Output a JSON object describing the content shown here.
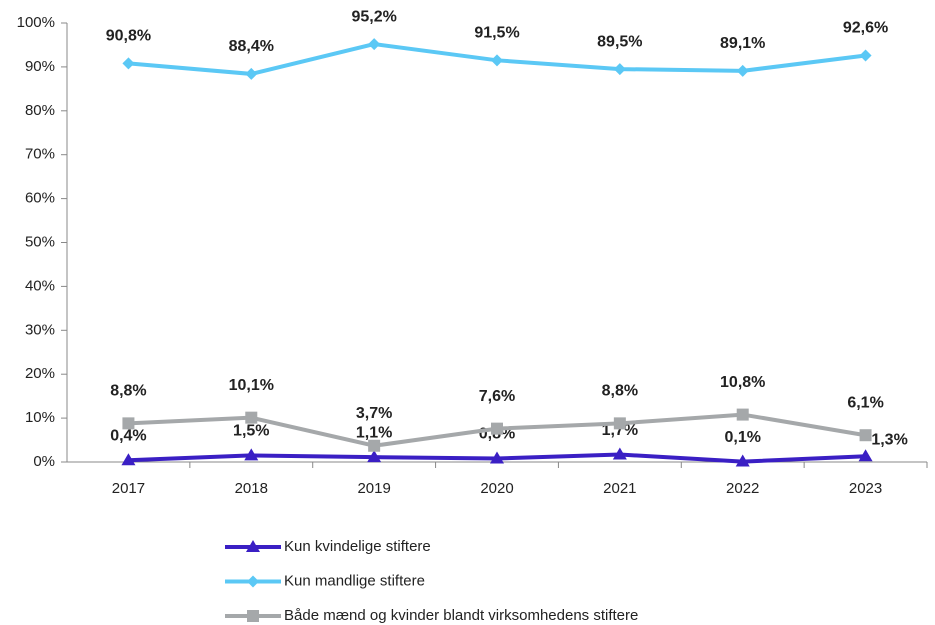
{
  "chart_data": {
    "type": "line",
    "categories": [
      "2017",
      "2018",
      "2019",
      "2020",
      "2021",
      "2022",
      "2023"
    ],
    "ylim": [
      0,
      100
    ],
    "yticks": [
      {
        "value": 0,
        "label": "0%"
      },
      {
        "value": 10,
        "label": "10%"
      },
      {
        "value": 20,
        "label": "20%"
      },
      {
        "value": 30,
        "label": "30%"
      },
      {
        "value": 40,
        "label": "40%"
      },
      {
        "value": 50,
        "label": "50%"
      },
      {
        "value": 60,
        "label": "60%"
      },
      {
        "value": 70,
        "label": "70%"
      },
      {
        "value": 80,
        "label": "80%"
      },
      {
        "value": 90,
        "label": "90%"
      },
      {
        "value": 100,
        "label": "100%"
      }
    ],
    "series": [
      {
        "name": "Kun kvindelige stiftere",
        "color": "#3a1fc4",
        "marker": "triangle",
        "values": [
          0.4,
          1.5,
          1.1,
          0.8,
          1.7,
          0.1,
          1.3
        ],
        "value_labels": [
          "0,4%",
          "1,5%",
          "1,1%",
          "0,8%",
          "1,7%",
          "0,1%",
          "1,3%"
        ]
      },
      {
        "name": "Kun mandlige stiftere",
        "color": "#5bc8f5",
        "marker": "diamond",
        "values": [
          90.8,
          88.4,
          95.2,
          91.5,
          89.5,
          89.1,
          92.6
        ],
        "value_labels": [
          "90,8%",
          "88,4%",
          "95,2%",
          "91,5%",
          "89,5%",
          "89,1%",
          "92,6%"
        ]
      },
      {
        "name": "Både mænd og kvinder blandt virksomhedens stiftere",
        "color": "#a5a8aa",
        "marker": "square",
        "values": [
          8.8,
          10.1,
          3.7,
          7.6,
          8.8,
          10.8,
          6.1
        ],
        "value_labels": [
          "8,8%",
          "10,1%",
          "3,7%",
          "7,6%",
          "8,8%",
          "10,8%",
          "6,1%"
        ]
      }
    ]
  }
}
